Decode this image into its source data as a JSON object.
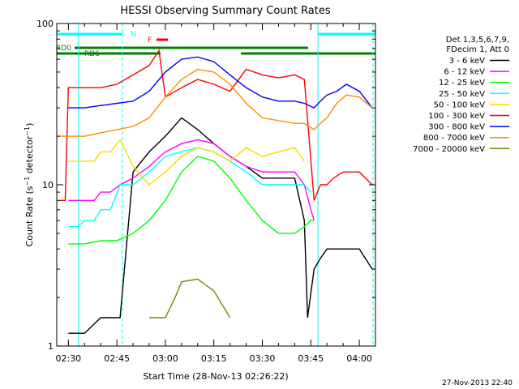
{
  "chart_data": {
    "type": "line",
    "title": "HESSI Observing Summary Count Rates",
    "xlabel": "Start Time (28-Nov-13 02:26:22)",
    "ylabel": "Count Rate (s⁻¹ detector⁻¹)",
    "ylabel_parts": {
      "main": "Count Rate (s",
      "sup1": "−1",
      "mid": " detector",
      "sup2": "−1",
      "end": ")"
    },
    "yscale": "log",
    "ylim": [
      1,
      100
    ],
    "xlim_minutes": [
      146.4,
      245
    ],
    "x_ticks": [
      {
        "m": 150,
        "label": "02:30"
      },
      {
        "m": 165,
        "label": "02:45"
      },
      {
        "m": 180,
        "label": "03:00"
      },
      {
        "m": 195,
        "label": "03:15"
      },
      {
        "m": 210,
        "label": "03:30"
      },
      {
        "m": 225,
        "label": "03:45"
      },
      {
        "m": 240,
        "label": "04:00"
      }
    ],
    "y_ticks": [
      {
        "v": 1,
        "label": "1"
      },
      {
        "v": 10,
        "label": "10"
      },
      {
        "v": 100,
        "label": "100"
      }
    ],
    "legend_title": [
      "Det 1,3,5,6,7,9,",
      "FDecim 1, Att 0"
    ],
    "grid": false,
    "legend_position": "right",
    "series": [
      {
        "name": "3 - 6 keV",
        "color": "#000000",
        "x": [
          150,
          155,
          160,
          163,
          166,
          170,
          175,
          180,
          185,
          190,
          195,
          200,
          205,
          210,
          215,
          220,
          223,
          224,
          226,
          228,
          230,
          235,
          240,
          244
        ],
        "y": [
          1.2,
          1.2,
          1.5,
          1.5,
          1.5,
          12,
          16,
          20,
          26,
          22,
          18,
          15,
          13,
          11,
          11,
          11,
          6,
          1.5,
          3,
          3.5,
          4,
          4,
          4,
          3
        ]
      },
      {
        "name": "6 - 12 keV",
        "color": "#ff00ff",
        "x": [
          150,
          152,
          155,
          158,
          160,
          163,
          166,
          170,
          175,
          180,
          185,
          190,
          195,
          200,
          205,
          210,
          215,
          220,
          223,
          225,
          226
        ],
        "y": [
          8,
          8,
          8,
          8,
          9,
          9,
          10,
          11,
          13,
          16,
          18,
          19,
          18,
          15,
          13,
          12,
          12,
          12,
          10,
          7,
          6
        ]
      },
      {
        "name": "12 - 25 keV",
        "color": "#00ff00",
        "x": [
          150,
          155,
          160,
          165,
          170,
          175,
          180,
          185,
          190,
          195,
          200,
          205,
          210,
          215,
          220,
          223,
          225,
          226
        ],
        "y": [
          4.3,
          4.3,
          4.5,
          4.5,
          5,
          6,
          8,
          12,
          15,
          14,
          11,
          8,
          6,
          5,
          5,
          5.5,
          6,
          6
        ]
      },
      {
        "name": "25 - 50 keV",
        "color": "#00ffff",
        "x": [
          150,
          153,
          155,
          158,
          160,
          163,
          166,
          170,
          175,
          180,
          185,
          190,
          195,
          200,
          205,
          210,
          215,
          220,
          223,
          225
        ],
        "y": [
          5.5,
          5.5,
          6,
          6,
          7,
          7,
          10,
          10,
          12,
          15,
          16,
          17,
          16,
          14,
          12,
          10,
          10,
          10,
          10,
          9
        ]
      },
      {
        "name": "50 - 100 keV",
        "color": "#ffd700",
        "x": [
          150,
          153,
          155,
          158,
          160,
          163,
          166,
          170,
          175,
          180,
          185,
          190,
          195,
          200,
          205,
          210,
          215,
          220,
          223
        ],
        "y": [
          14,
          14,
          14,
          14,
          16,
          16,
          19,
          13,
          10,
          12,
          15,
          17,
          16,
          14,
          17,
          15,
          16,
          17,
          14
        ]
      },
      {
        "name": "100 - 300 keV",
        "color": "#ff0000",
        "x": [
          147,
          149,
          150,
          155,
          160,
          165,
          170,
          175,
          178,
          180,
          185,
          190,
          195,
          200,
          205,
          210,
          215,
          220,
          223,
          226,
          228,
          230,
          232,
          235,
          240,
          244
        ],
        "y": [
          8,
          8,
          40,
          40,
          40,
          42,
          48,
          55,
          68,
          35,
          40,
          45,
          42,
          38,
          52,
          48,
          46,
          48,
          45,
          8,
          10,
          10,
          11,
          12,
          12,
          10
        ]
      },
      {
        "name": "300 - 800 keV",
        "color": "#0000ff",
        "x": [
          150,
          155,
          160,
          165,
          170,
          175,
          180,
          185,
          190,
          195,
          200,
          205,
          210,
          215,
          220,
          223,
          226,
          228,
          230,
          233,
          236,
          240,
          244
        ],
        "y": [
          30,
          30,
          31,
          32,
          33,
          38,
          50,
          60,
          62,
          58,
          48,
          40,
          35,
          33,
          33,
          32,
          30,
          33,
          36,
          38,
          42,
          38,
          30
        ]
      },
      {
        "name": "800 - 7000 keV",
        "color": "#ff8c00",
        "x": [
          147,
          150,
          155,
          160,
          165,
          170,
          175,
          180,
          185,
          190,
          195,
          200,
          205,
          210,
          215,
          220,
          223,
          226,
          228,
          230,
          233,
          236,
          240,
          244
        ],
        "y": [
          20,
          20,
          20,
          21,
          22,
          23,
          26,
          35,
          45,
          52,
          50,
          42,
          32,
          26,
          25,
          24,
          24,
          22,
          24,
          26,
          32,
          36,
          35,
          30
        ]
      },
      {
        "name": "7000 - 20000 keV",
        "color": "#808000",
        "x": [
          175,
          180,
          183,
          185,
          190,
          195,
          200
        ],
        "y": [
          1.5,
          1.5,
          2,
          2.5,
          2.6,
          2.2,
          1.5
        ]
      }
    ],
    "annotations": {
      "night_bar": {
        "label": "N",
        "color": "#00ffff"
      },
      "flare_bar": {
        "label": "F",
        "color": "#ff0000"
      },
      "rate_decimation_bars": [
        {
          "label": "RD0",
          "color": "#008000"
        },
        {
          "label": "RD6",
          "color": "#008000"
        }
      ]
    }
  },
  "footer": {
    "stamp": "27-Nov-2013 22:40"
  }
}
